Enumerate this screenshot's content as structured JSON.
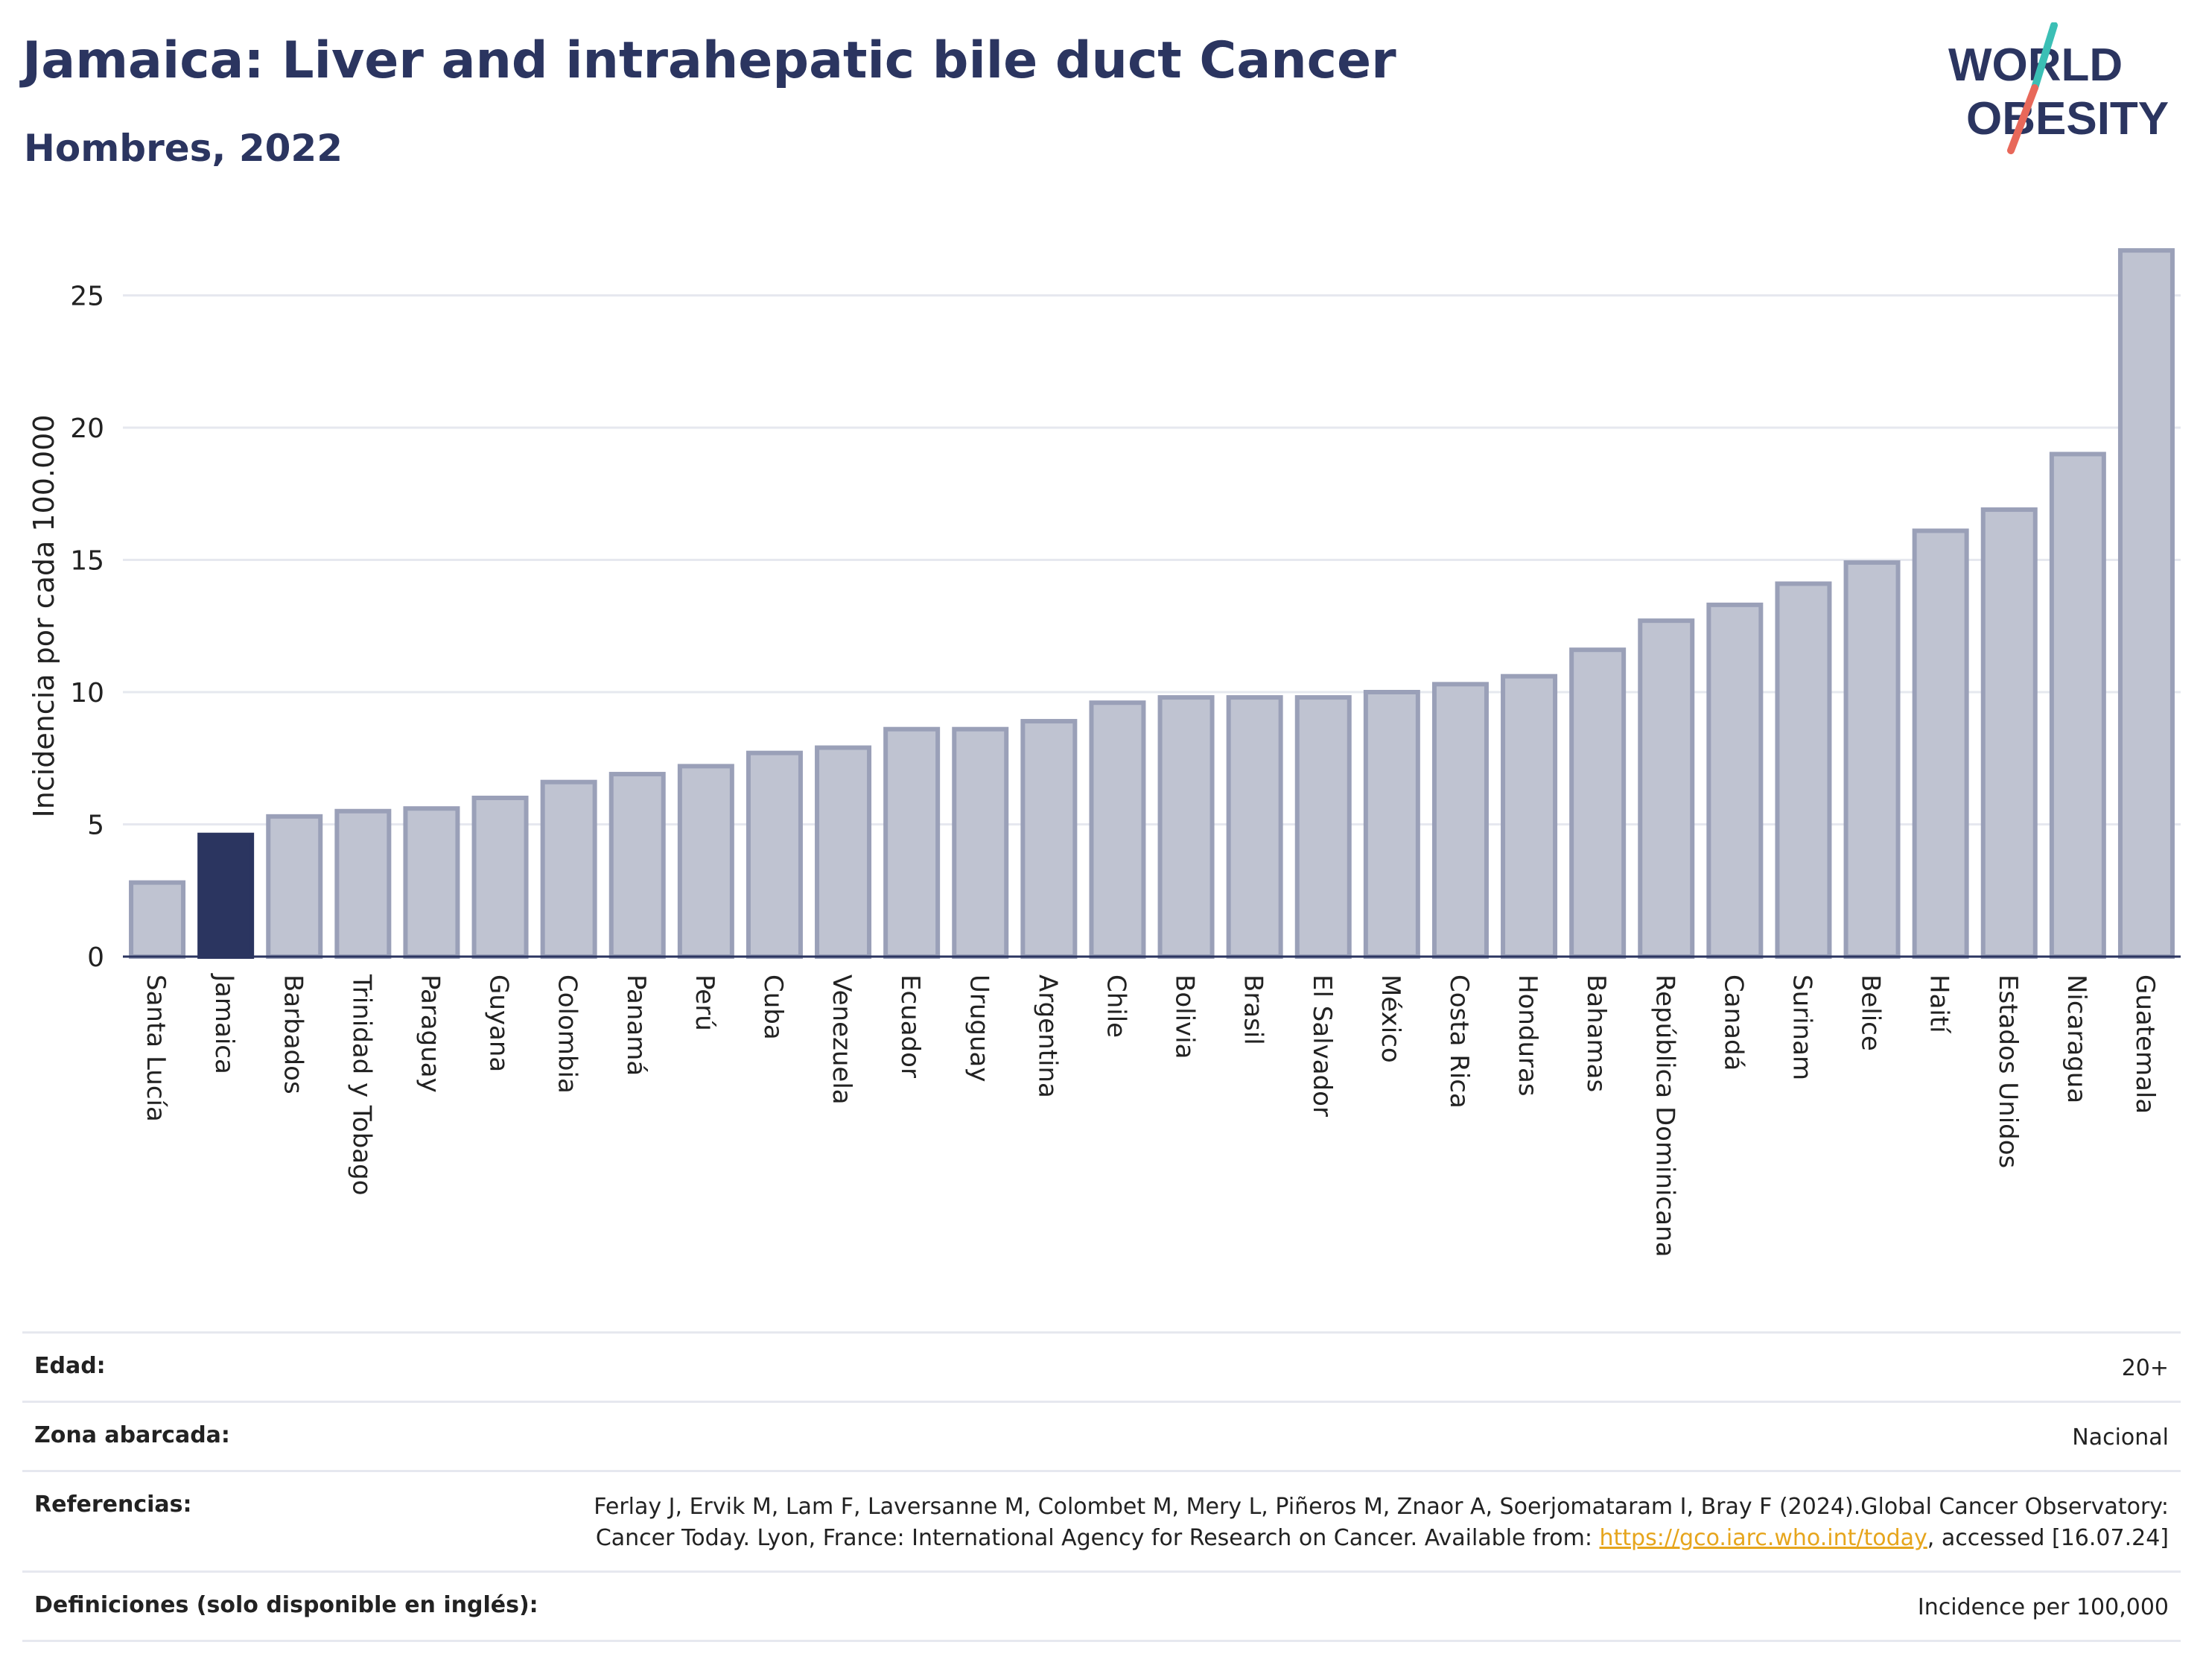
{
  "header": {
    "title": "Jamaica: Liver and intrahepatic bile duct Cancer",
    "subtitle": "Hombres, 2022"
  },
  "logo": {
    "line1": "WORLD",
    "line2": "OBESITY",
    "icon": "world-obesity-logo"
  },
  "colors": {
    "title": "#2b3560",
    "highlight_bar": "#2b3560",
    "bar_fill": "#bfc3d1",
    "bar_stroke": "#9aa0b8",
    "logo_teal": "#3bbfb5",
    "logo_red": "#e8685a",
    "link": "#e6a51c"
  },
  "chart_data": {
    "type": "bar",
    "title": "Jamaica: Liver and intrahepatic bile duct Cancer",
    "subtitle": "Hombres, 2022",
    "ylabel": "Incidencia por cada 100.000",
    "xlabel": "",
    "ylim": [
      0,
      28
    ],
    "yticks": [
      0,
      5,
      10,
      15,
      20,
      25
    ],
    "grid": true,
    "highlight": "Jamaica",
    "categories": [
      "Santa Lucía",
      "Jamaica",
      "Barbados",
      "Trinidad y Tobago",
      "Paraguay",
      "Guyana",
      "Colombia",
      "Panamá",
      "Perú",
      "Cuba",
      "Venezuela",
      "Ecuador",
      "Uruguay",
      "Argentina",
      "Chile",
      "Bolivia",
      "Brasil",
      "El Salvador",
      "México",
      "Costa Rica",
      "Honduras",
      "Bahamas",
      "República Dominicana",
      "Canadá",
      "Surinam",
      "Belice",
      "Haití",
      "Estados Unidos",
      "Nicaragua",
      "Guatemala"
    ],
    "values": [
      2.8,
      4.6,
      5.3,
      5.5,
      5.6,
      6.0,
      6.6,
      6.9,
      7.2,
      7.7,
      7.9,
      8.6,
      8.6,
      8.9,
      9.6,
      9.8,
      9.8,
      9.8,
      10.0,
      10.3,
      10.6,
      11.6,
      12.7,
      13.3,
      14.1,
      14.9,
      16.1,
      16.9,
      19.0,
      26.7
    ]
  },
  "info": {
    "age_label": "Edad:",
    "age_value": "20+",
    "zone_label": "Zona abarcada:",
    "zone_value": "Nacional",
    "refs_label": "Referencias:",
    "refs_text_1": "Ferlay J, Ervik M, Lam F, Laversanne M, Colombet M, Mery L, Piñeros M, Znaor A, Soerjomataram I, Bray F (2024).Global Cancer Observatory: Cancer Today. Lyon, France: International Agency for Research on Cancer. Available from: ",
    "refs_link": "https://gco.iarc.who.int/today",
    "refs_text_2": ", accessed [16.07.24]",
    "defs_label": "Definiciones (solo disponible en inglés):",
    "defs_value": "Incidence per 100,000"
  }
}
